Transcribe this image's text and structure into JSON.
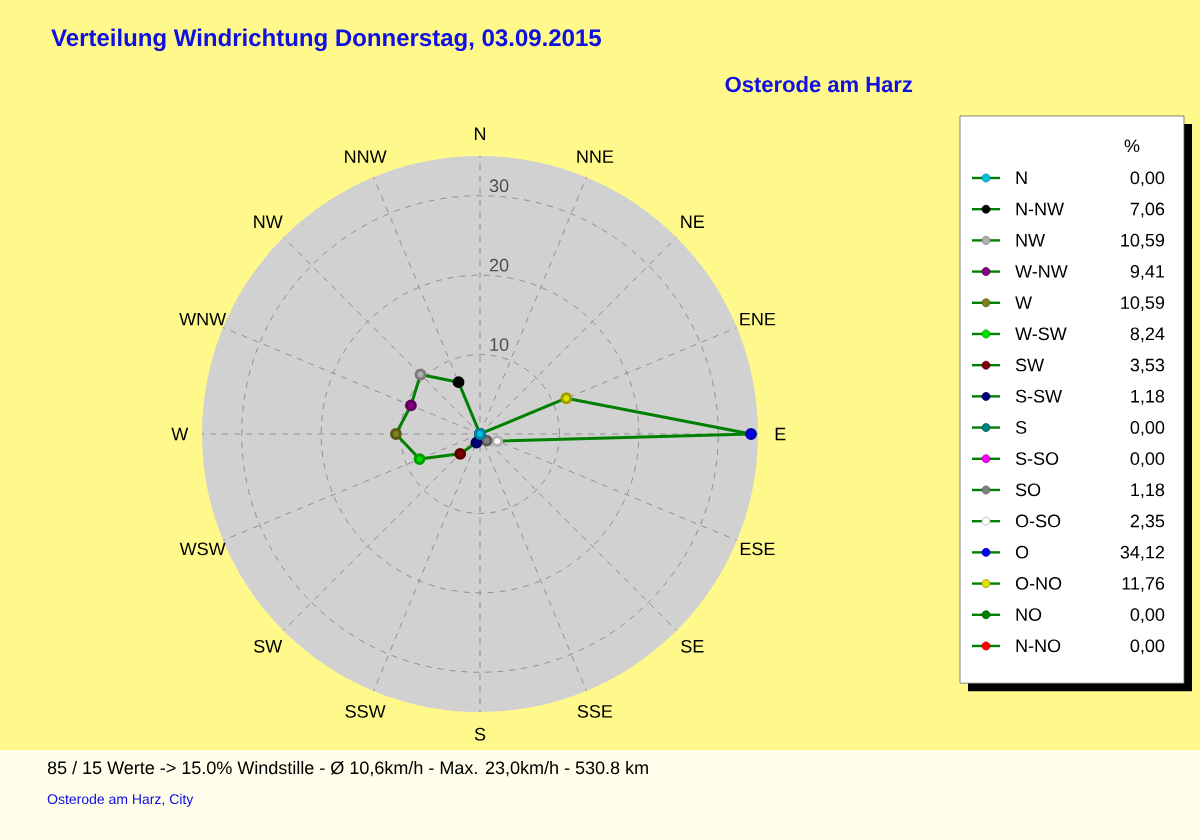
{
  "chart_data": [
    {
      "type": "radar",
      "title": "Verteilung Windrichtung   Donnerstag, 03.09.2015",
      "subtitle": "Osterode am Harz",
      "categories": [
        "N",
        "NNE",
        "NE",
        "ENE",
        "E",
        "ESE",
        "SE",
        "SSE",
        "S",
        "SSW",
        "SW",
        "WSW",
        "W",
        "WNW",
        "NW",
        "NNW"
      ],
      "ylim": [
        0,
        35
      ],
      "yticks": [
        10,
        20,
        30
      ],
      "grid": true,
      "marker": "circle",
      "colors": [
        "#00c0e0",
        "#ff0000",
        "#008000",
        "#e0e000",
        "#0000ff",
        "#ffffff",
        "#808080",
        "#ff00ff",
        "#008080",
        "#000080",
        "#800000",
        "#00e000",
        "#808020",
        "#800080",
        "#b0b0b0",
        "#000000"
      ],
      "series": [
        {
          "color": "#008000",
          "values": [
            0,
            0,
            0,
            11.76,
            34.12,
            2.35,
            1.18,
            0,
            0,
            1.18,
            3.53,
            8.24,
            10.59,
            9.41,
            10.59,
            7.06
          ]
        }
      ],
      "annotations": [
        "85 / 15 Werte  -> 15.0% Windstille   -   Ø 10,6km/h  -  Max. 23,0km/h   -   530.8 km",
        "Osterode am Harz, City"
      ]
    },
    {
      "type": "other",
      "title": "%",
      "annotations": [
        "N",
        "0,00",
        "N-NW",
        "7,06",
        "NW",
        "10,59",
        "W-NW",
        "9,41",
        "W",
        "10,59",
        "W-SW",
        "8,24",
        "SW",
        "3,53",
        "S-SW",
        "1,18",
        "S",
        "0,00",
        "S-SO",
        "0,00",
        "SO",
        "1,18",
        "O-SO",
        "2,35",
        "O",
        "34,12",
        "O-NO",
        "11,76",
        "NO",
        "0,00",
        "N-NO",
        "0,00"
      ]
    }
  ]
}
